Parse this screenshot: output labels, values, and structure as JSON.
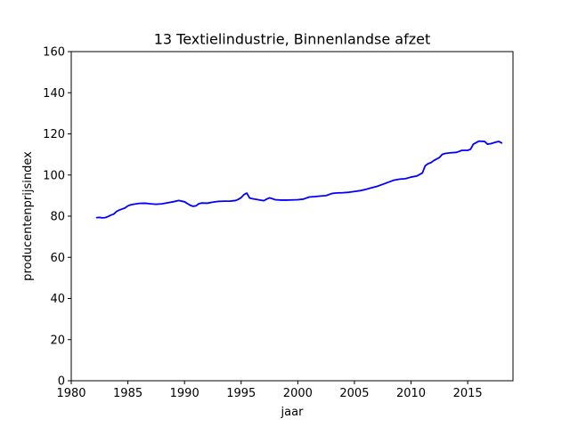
{
  "chart_data": {
    "type": "line",
    "title": "13 Textielindustrie, Binnenlandse afzet",
    "xlabel": "jaar",
    "ylabel": "producentenprijsindex",
    "xlim": [
      1980,
      2019
    ],
    "ylim": [
      0,
      160
    ],
    "xticks": [
      "1980",
      "1985",
      "1990",
      "1995",
      "2000",
      "2005",
      "2010",
      "2015"
    ],
    "yticks": [
      "0",
      "20",
      "40",
      "60",
      "80",
      "100",
      "120",
      "140",
      "160"
    ],
    "grid": false,
    "series": [
      {
        "color": "#0000ff",
        "x": [
          1982.25,
          1982.5,
          1982.75,
          1983.0,
          1983.25,
          1983.5,
          1983.75,
          1984.0,
          1984.25,
          1984.5,
          1984.75,
          1985.0,
          1985.25,
          1985.5,
          1985.75,
          1986.0,
          1986.5,
          1987.0,
          1987.5,
          1988.0,
          1988.5,
          1989.0,
          1989.5,
          1990.0,
          1990.5,
          1990.75,
          1991.0,
          1991.25,
          1991.5,
          1992.0,
          1992.5,
          1993.0,
          1993.5,
          1994.0,
          1994.5,
          1994.75,
          1995.0,
          1995.25,
          1995.5,
          1995.75,
          1996.0,
          1996.5,
          1997.0,
          1997.25,
          1997.5,
          1997.75,
          1998.0,
          1998.5,
          1999.0,
          1999.5,
          2000.0,
          2000.5,
          2001.0,
          2001.5,
          2002.0,
          2002.5,
          2003.0,
          2003.25,
          2003.5,
          2004.0,
          2004.5,
          2005.0,
          2005.5,
          2006.0,
          2006.5,
          2007.0,
          2007.5,
          2008.0,
          2008.25,
          2008.5,
          2009.0,
          2009.5,
          2010.0,
          2010.5,
          2011.0,
          2011.25,
          2011.5,
          2011.75,
          2012.0,
          2012.5,
          2012.75,
          2013.0,
          2013.5,
          2014.0,
          2014.5,
          2015.0,
          2015.25,
          2015.5,
          2016.0,
          2016.5,
          2016.75,
          2017.0,
          2017.5,
          2017.75,
          2018.0
        ],
        "y": [
          79.3,
          79.4,
          79.2,
          79.3,
          79.8,
          80.5,
          81.0,
          82.3,
          83.0,
          83.5,
          84.0,
          85.0,
          85.5,
          85.8,
          86.0,
          86.2,
          86.3,
          86.0,
          85.8,
          86.0,
          86.5,
          87.0,
          87.6,
          87.0,
          85.3,
          84.8,
          85.0,
          86.0,
          86.4,
          86.3,
          86.8,
          87.2,
          87.3,
          87.3,
          87.6,
          88.2,
          89.0,
          90.5,
          91.2,
          88.8,
          88.5,
          88.0,
          87.5,
          88.3,
          88.9,
          88.5,
          88.0,
          87.8,
          87.8,
          87.9,
          88.0,
          88.3,
          89.3,
          89.5,
          89.8,
          90.0,
          91.0,
          91.2,
          91.3,
          91.4,
          91.6,
          92.0,
          92.4,
          93.0,
          93.8,
          94.5,
          95.5,
          96.5,
          97.0,
          97.5,
          98.0,
          98.2,
          99.0,
          99.5,
          101.0,
          104.5,
          105.5,
          106.0,
          107.0,
          108.5,
          110.0,
          110.5,
          110.8,
          111.0,
          112.0,
          112.0,
          112.5,
          115.0,
          116.5,
          116.3,
          115.0,
          115.2,
          116.0,
          116.3,
          115.6
        ]
      }
    ]
  }
}
